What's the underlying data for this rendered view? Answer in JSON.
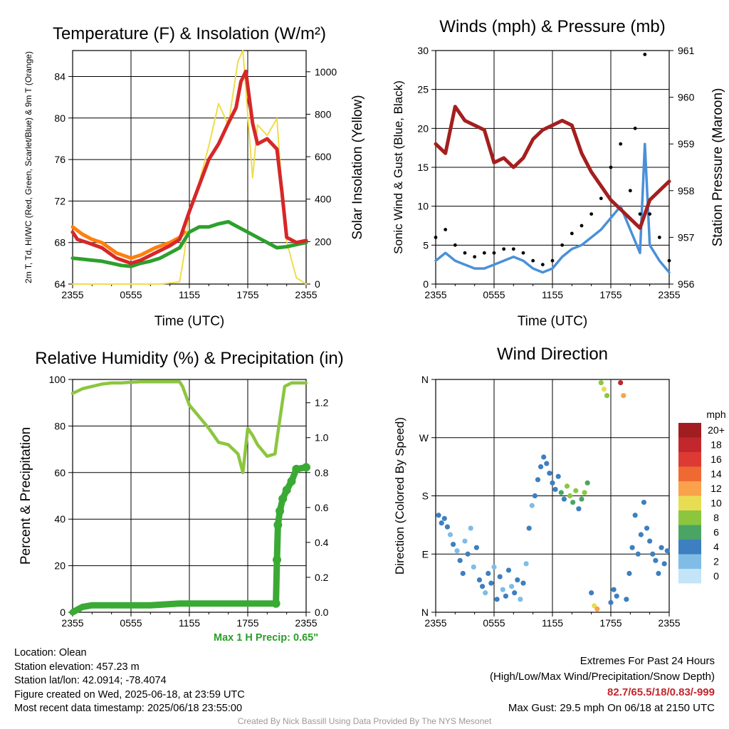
{
  "chart_data": [
    {
      "type": "line",
      "title": "Temperature (F) & Insolation (W/m²)",
      "xlabel": "Time (UTC)",
      "ylabel": "2m T, Td, HI/WC (Red, Green, Scarlet/Blue) & 9m T (Orange)",
      "y2label": "Solar Insolation (Yellow)",
      "x_ticks": [
        "2355",
        "0555",
        "1155",
        "1755",
        "2355"
      ],
      "ylim": [
        64,
        86.5
      ],
      "y_ticks": [
        64,
        68,
        72,
        76,
        80,
        84
      ],
      "y2lim": [
        0,
        1100
      ],
      "y2_ticks": [
        0,
        200,
        400,
        600,
        800,
        1000
      ],
      "series": [
        {
          "color": "#d62728",
          "x": [
            0,
            0.5,
            1.5,
            3,
            4.5,
            6,
            7,
            8.5,
            10,
            11,
            12,
            13,
            14,
            15,
            16,
            16.8,
            17.3,
            17.8,
            18.5,
            19,
            20,
            21,
            21.5,
            22,
            23,
            24
          ],
          "values": [
            69,
            68.3,
            68,
            67.5,
            66.5,
            66,
            66.3,
            67,
            67.7,
            68.3,
            71,
            73.5,
            76,
            77.5,
            79.5,
            81,
            83.5,
            84.5,
            79.5,
            77.5,
            78,
            77,
            73,
            68.5,
            68,
            68.2
          ]
        },
        {
          "color": "#ff7f0e",
          "x": [
            0,
            1,
            2,
            3,
            4.5,
            6,
            7,
            8.5,
            10,
            11,
            11.5
          ],
          "values": [
            69.5,
            68.8,
            68.3,
            68,
            67,
            66.5,
            66.8,
            67.5,
            68,
            68.5,
            69
          ]
        },
        {
          "color": "#2ca02c",
          "x": [
            0,
            1,
            2,
            3,
            4,
            5,
            6,
            7,
            8,
            9,
            10,
            11,
            12,
            13,
            14,
            15,
            16,
            17,
            18,
            19,
            20,
            21,
            22,
            23,
            24
          ],
          "values": [
            66.5,
            66.4,
            66.3,
            66.2,
            66,
            65.8,
            65.7,
            66,
            66.2,
            66.5,
            67,
            67.5,
            69,
            69.5,
            69.5,
            69.8,
            70,
            69.5,
            69,
            68.5,
            68,
            67.5,
            67.6,
            67.8,
            68
          ]
        },
        {
          "color": "#f0dc4b",
          "x": [
            0,
            3,
            6,
            9,
            11,
            11.5,
            12,
            13,
            14,
            15,
            16,
            17,
            17.5,
            18,
            18.5,
            19,
            20,
            21,
            21.5,
            22,
            23,
            24
          ],
          "values": [
            0,
            0,
            0,
            0,
            10,
            150,
            350,
            480,
            650,
            850,
            750,
            1050,
            1100,
            800,
            500,
            750,
            700,
            780,
            450,
            200,
            30,
            0
          ]
        }
      ]
    },
    {
      "type": "line",
      "title": "Winds (mph) & Pressure (mb)",
      "xlabel": "Time (UTC)",
      "ylabel": "Sonic Wind & Gust (Blue, Black)",
      "y2label": "Station Pressure (Maroon)",
      "x_ticks": [
        "2355",
        "0555",
        "1155",
        "1755",
        "2355"
      ],
      "ylim": [
        0,
        30
      ],
      "y_ticks": [
        0,
        5,
        10,
        15,
        20,
        25,
        30
      ],
      "y2lim": [
        956,
        961
      ],
      "y2_ticks": [
        956,
        957,
        958,
        959,
        960,
        961
      ],
      "series": [
        {
          "color": "#4a90d9",
          "x": [
            0,
            1,
            2,
            3,
            4,
            5,
            6,
            7,
            8,
            9,
            10,
            11,
            12,
            13,
            14,
            15,
            16,
            17,
            18,
            19,
            20,
            21,
            21.5,
            22,
            23,
            24
          ],
          "values": [
            3,
            4,
            3,
            2.5,
            2,
            2,
            2.5,
            3,
            3.5,
            3,
            2,
            1.5,
            2,
            3.5,
            4.5,
            5,
            6,
            7,
            8.5,
            10,
            7,
            4,
            18,
            5,
            3,
            1.5
          ]
        },
        {
          "color": "#000000",
          "x": [
            0,
            1,
            2,
            3,
            4,
            5,
            6,
            7,
            8,
            9,
            10,
            11,
            12,
            13,
            14,
            15,
            16,
            17,
            18,
            19,
            20,
            20.5,
            21,
            21.5,
            22,
            23,
            24
          ],
          "values": [
            6,
            7,
            5,
            4,
            3.5,
            4,
            4,
            4.5,
            4.5,
            4,
            3,
            2.5,
            3,
            5,
            6.5,
            7.5,
            9,
            11,
            15,
            18,
            12,
            20,
            9,
            29.5,
            9,
            6,
            3
          ]
        },
        {
          "color": "#a31f1f",
          "axis": "y2",
          "x": [
            0,
            1,
            2,
            3,
            4,
            5,
            6,
            7,
            8,
            9,
            10,
            11,
            12,
            13,
            14,
            15,
            16,
            17,
            18,
            19,
            20,
            21,
            22,
            23,
            24
          ],
          "values": [
            959,
            958.8,
            959.8,
            959.5,
            959.4,
            959.3,
            958.6,
            958.7,
            958.5,
            958.7,
            959.1,
            959.3,
            959.4,
            959.5,
            959.4,
            958.8,
            958.4,
            958.1,
            957.8,
            957.6,
            957.4,
            957.2,
            957.8,
            958.0,
            958.2
          ]
        }
      ]
    },
    {
      "type": "line",
      "title": "Relative Humidity (%) & Precipitation (in)",
      "xlabel": "",
      "ylabel": "Percent & Precipitation",
      "x_ticks": [
        "2355",
        "0555",
        "1155",
        "1755",
        "2355"
      ],
      "ylim": [
        0,
        100
      ],
      "y_ticks": [
        0,
        20,
        40,
        60,
        80,
        100
      ],
      "y2lim": [
        0,
        1.3333
      ],
      "y2_ticks": [
        "0.0",
        "0.2",
        "0.4",
        "0.6",
        "0.8",
        "1.0",
        "1.2"
      ],
      "annotation": "Max 1 H Precip: 0.65\"",
      "series": [
        {
          "color": "#8cc63f",
          "x": [
            0,
            1,
            2,
            3,
            4,
            5,
            6,
            7,
            8,
            9,
            10,
            11,
            11.3,
            12,
            13,
            14,
            15,
            16,
            17,
            17.5,
            18,
            18.5,
            19,
            20,
            20.8,
            21.2,
            21.8,
            22.5,
            24
          ],
          "values": [
            94,
            96,
            97,
            98,
            98.5,
            98.5,
            98.8,
            99,
            99,
            99,
            99,
            99,
            97,
            89,
            84,
            79,
            73,
            72,
            68,
            60,
            79,
            76,
            72,
            67,
            68,
            80,
            97,
            98.5,
            98.5
          ]
        },
        {
          "color": "#3aaa35",
          "axis": "y2",
          "x": [
            0,
            1,
            2,
            3,
            5,
            8,
            11,
            14,
            17,
            20,
            20.9,
            21.0,
            21.1,
            21.3,
            21.6,
            22,
            22.5,
            23,
            24
          ],
          "values": [
            0.0,
            0.03,
            0.04,
            0.04,
            0.04,
            0.04,
            0.05,
            0.05,
            0.05,
            0.05,
            0.05,
            0.3,
            0.5,
            0.58,
            0.65,
            0.7,
            0.75,
            0.82,
            0.83
          ]
        }
      ]
    },
    {
      "type": "scatter",
      "title": "Wind Direction",
      "xlabel": "",
      "ylabel": "Direction (Colored By Speed)",
      "x_ticks": [
        "2355",
        "0555",
        "1155",
        "1755",
        "2355"
      ],
      "y_ticks": [
        "N",
        "E",
        "S",
        "W",
        "N"
      ],
      "ylim": [
        0,
        360
      ],
      "legend_title": "mph",
      "legend_labels": [
        "20+",
        "18",
        "16",
        "14",
        "12",
        "10",
        "8",
        "6",
        "4",
        "2",
        "0"
      ],
      "legend_colors": [
        "#a11d21",
        "#c1272d",
        "#de3a34",
        "#ef6a32",
        "#f9a24b",
        "#e8dc53",
        "#8cc63f",
        "#4aa564",
        "#3d7fbf",
        "#80bce6",
        "#c4e4f7"
      ],
      "points": [
        [
          0.3,
          150,
          3
        ],
        [
          0.6,
          138,
          4
        ],
        [
          0.9,
          145,
          4
        ],
        [
          1.2,
          132,
          3
        ],
        [
          1.5,
          120,
          2
        ],
        [
          1.8,
          105,
          3
        ],
        [
          2.2,
          95,
          2
        ],
        [
          2.5,
          80,
          3
        ],
        [
          2.8,
          60,
          3
        ],
        [
          3.0,
          110,
          2
        ],
        [
          3.3,
          90,
          3
        ],
        [
          3.6,
          130,
          2
        ],
        [
          3.9,
          70,
          2
        ],
        [
          4.2,
          100,
          3
        ],
        [
          4.5,
          50,
          3
        ],
        [
          4.8,
          40,
          4
        ],
        [
          5.1,
          30,
          2
        ],
        [
          5.4,
          60,
          3
        ],
        [
          5.7,
          45,
          4
        ],
        [
          6.0,
          70,
          2
        ],
        [
          6.3,
          20,
          3
        ],
        [
          6.6,
          55,
          3
        ],
        [
          6.9,
          35,
          2
        ],
        [
          7.2,
          25,
          3
        ],
        [
          7.5,
          65,
          4
        ],
        [
          7.8,
          40,
          2
        ],
        [
          8.1,
          30,
          3
        ],
        [
          8.4,
          50,
          3
        ],
        [
          8.7,
          20,
          2
        ],
        [
          9.0,
          45,
          3
        ],
        [
          9.3,
          75,
          2
        ],
        [
          9.6,
          130,
          3
        ],
        [
          9.9,
          165,
          2
        ],
        [
          10.2,
          180,
          3
        ],
        [
          10.5,
          205,
          3
        ],
        [
          10.8,
          225,
          4
        ],
        [
          11.1,
          240,
          3
        ],
        [
          11.4,
          230,
          4
        ],
        [
          11.7,
          215,
          3
        ],
        [
          12.0,
          200,
          4
        ],
        [
          12.3,
          190,
          3
        ],
        [
          12.6,
          210,
          4
        ],
        [
          12.9,
          185,
          6
        ],
        [
          13.2,
          175,
          4
        ],
        [
          13.5,
          195,
          7
        ],
        [
          13.8,
          180,
          8
        ],
        [
          14.1,
          170,
          6
        ],
        [
          14.4,
          188,
          7
        ],
        [
          14.7,
          160,
          4
        ],
        [
          15.0,
          175,
          6
        ],
        [
          15.3,
          185,
          7
        ],
        [
          15.6,
          200,
          5
        ],
        [
          16.0,
          30,
          4
        ],
        [
          16.3,
          10,
          10
        ],
        [
          16.6,
          5,
          12
        ],
        [
          17.0,
          355,
          8
        ],
        [
          17.3,
          345,
          10
        ],
        [
          17.6,
          335,
          8
        ],
        [
          18.0,
          15,
          4
        ],
        [
          18.3,
          35,
          4
        ],
        [
          18.6,
          25,
          4
        ],
        [
          19.0,
          355,
          18
        ],
        [
          19.3,
          335,
          12
        ],
        [
          19.6,
          20,
          3
        ],
        [
          19.9,
          60,
          3
        ],
        [
          20.2,
          100,
          3
        ],
        [
          20.5,
          150,
          4
        ],
        [
          20.8,
          90,
          3
        ],
        [
          21.1,
          120,
          3
        ],
        [
          21.4,
          170,
          4
        ],
        [
          21.7,
          130,
          3
        ],
        [
          22.0,
          110,
          3
        ],
        [
          22.3,
          90,
          4
        ],
        [
          22.6,
          80,
          3
        ],
        [
          22.9,
          60,
          3
        ],
        [
          23.2,
          100,
          4
        ],
        [
          23.5,
          75,
          3
        ],
        [
          23.8,
          95,
          3
        ]
      ]
    }
  ],
  "info": {
    "location": "Location: Olean",
    "elevation": "Station elevation: 457.23 m",
    "latlon": "Station lat/lon: 42.0914; -78.4074",
    "created": "Figure created on Wed, 2025-06-18, at 23:59 UTC",
    "recent": "Most recent data timestamp: 2025/06/18 23:55:00"
  },
  "extremes": {
    "line1": "Extremes For Past 24 Hours",
    "line2": "(High/Low/Max Wind/Precipitation/Snow Depth)",
    "values": "82.7/65.5/18/0.83/-999",
    "gust": "Max Gust: 29.5 mph On 06/18 at 2150 UTC"
  },
  "credit": "Created By Nick Bassill Using Data Provided By The NYS Mesonet"
}
